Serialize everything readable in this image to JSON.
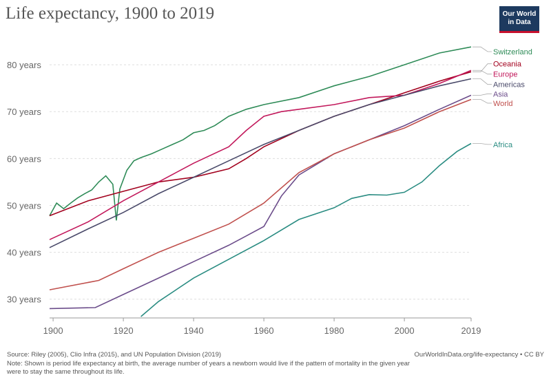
{
  "header": {
    "title": "Life expectancy, 1900 to 2019",
    "logo_line1": "Our World",
    "logo_line2": "in Data"
  },
  "footer": {
    "source": "Source: Riley (2005), Clio Infra (2015), and UN Population Division (2019)",
    "url": "OurWorldInData.org/life-expectancy • CC BY",
    "note_line1": "Note: Shown is period life expectancy at birth, the average number of years a newborn would live if the pattern of mortality in the given year",
    "note_line2": "were to stay the same throughout its life."
  },
  "chart_data": {
    "type": "line",
    "title": "Life expectancy, 1900 to 2019",
    "xlim": [
      1899,
      2019
    ],
    "ylim": [
      26,
      85
    ],
    "x_ticks": [
      {
        "value": 1900,
        "label": "1900"
      },
      {
        "value": 1920,
        "label": "1920"
      },
      {
        "value": 1940,
        "label": "1940"
      },
      {
        "value": 1960,
        "label": "1960"
      },
      {
        "value": 1980,
        "label": "1980"
      },
      {
        "value": 2000,
        "label": "2000"
      },
      {
        "value": 2019,
        "label": "2019"
      }
    ],
    "y_ticks": [
      {
        "value": 30,
        "label": "30 years"
      },
      {
        "value": 40,
        "label": "40 years"
      },
      {
        "value": 50,
        "label": "50 years"
      },
      {
        "value": 60,
        "label": "60 years"
      },
      {
        "value": 70,
        "label": "70 years"
      },
      {
        "value": 80,
        "label": "80 years"
      }
    ],
    "grid": "horizontal dashed",
    "legend": "right-side line labels",
    "series": [
      {
        "name": "Switzerland",
        "color": "#2e8b57",
        "label_y": 82.8,
        "points": [
          [
            1899,
            47.8
          ],
          [
            1901,
            50.5
          ],
          [
            1903,
            49.3
          ],
          [
            1905,
            50.5
          ],
          [
            1907,
            51.6
          ],
          [
            1909,
            52.5
          ],
          [
            1911,
            53.3
          ],
          [
            1913,
            55.0
          ],
          [
            1915,
            56.3
          ],
          [
            1917,
            54.5
          ],
          [
            1918,
            46.8
          ],
          [
            1919,
            53.5
          ],
          [
            1921,
            57.5
          ],
          [
            1923,
            59.5
          ],
          [
            1925,
            60.2
          ],
          [
            1928,
            61.0
          ],
          [
            1931,
            62.0
          ],
          [
            1934,
            63.0
          ],
          [
            1937,
            64.0
          ],
          [
            1940,
            65.5
          ],
          [
            1943,
            66.0
          ],
          [
            1946,
            67.0
          ],
          [
            1950,
            69.0
          ],
          [
            1955,
            70.5
          ],
          [
            1960,
            71.5
          ],
          [
            1970,
            73.0
          ],
          [
            1980,
            75.5
          ],
          [
            1990,
            77.5
          ],
          [
            2000,
            80.0
          ],
          [
            2010,
            82.5
          ],
          [
            2019,
            83.8
          ]
        ]
      },
      {
        "name": "Oceania",
        "color": "#a2001d",
        "label_y": 80.2,
        "points": [
          [
            1899,
            47.8
          ],
          [
            1910,
            51.0
          ],
          [
            1920,
            53.0
          ],
          [
            1930,
            55.0
          ],
          [
            1940,
            56.0
          ],
          [
            1950,
            57.8
          ],
          [
            1955,
            60.0
          ],
          [
            1960,
            62.5
          ],
          [
            1970,
            66.0
          ],
          [
            1980,
            69.0
          ],
          [
            1990,
            71.5
          ],
          [
            2000,
            74.0
          ],
          [
            2010,
            76.5
          ],
          [
            2019,
            78.5
          ]
        ]
      },
      {
        "name": "Europe",
        "color": "#c2185b",
        "label_y": 78.0,
        "points": [
          [
            1899,
            42.7
          ],
          [
            1910,
            46.5
          ],
          [
            1920,
            51.0
          ],
          [
            1930,
            55.0
          ],
          [
            1940,
            59.0
          ],
          [
            1950,
            62.5
          ],
          [
            1955,
            66.0
          ],
          [
            1960,
            69.0
          ],
          [
            1965,
            70.0
          ],
          [
            1970,
            70.5
          ],
          [
            1980,
            71.5
          ],
          [
            1990,
            73.0
          ],
          [
            2000,
            73.5
          ],
          [
            2010,
            76.0
          ],
          [
            2019,
            78.8
          ]
        ]
      },
      {
        "name": "Americas",
        "color": "#4a4a6a",
        "label_y": 75.8,
        "points": [
          [
            1899,
            41.0
          ],
          [
            1910,
            45.0
          ],
          [
            1920,
            48.5
          ],
          [
            1930,
            52.5
          ],
          [
            1940,
            56.0
          ],
          [
            1950,
            59.5
          ],
          [
            1960,
            63.0
          ],
          [
            1970,
            66.0
          ],
          [
            1980,
            69.0
          ],
          [
            1990,
            71.5
          ],
          [
            2000,
            73.5
          ],
          [
            2010,
            75.5
          ],
          [
            2019,
            77.0
          ]
        ]
      },
      {
        "name": "Asia",
        "color": "#6b4c8a",
        "label_y": 73.8,
        "points": [
          [
            1899,
            28.0
          ],
          [
            1912,
            28.2
          ],
          [
            1920,
            31.0
          ],
          [
            1930,
            34.5
          ],
          [
            1940,
            38.0
          ],
          [
            1950,
            41.5
          ],
          [
            1955,
            43.5
          ],
          [
            1960,
            45.5
          ],
          [
            1965,
            52.0
          ],
          [
            1970,
            56.5
          ],
          [
            1980,
            61.0
          ],
          [
            1990,
            64.0
          ],
          [
            2000,
            67.0
          ],
          [
            2010,
            70.5
          ],
          [
            2019,
            73.5
          ]
        ]
      },
      {
        "name": "World",
        "color": "#c0504d",
        "label_y": 71.8,
        "points": [
          [
            1899,
            32.0
          ],
          [
            1913,
            34.0
          ],
          [
            1920,
            36.5
          ],
          [
            1930,
            40.0
          ],
          [
            1940,
            43.0
          ],
          [
            1950,
            46.0
          ],
          [
            1960,
            50.5
          ],
          [
            1970,
            57.0
          ],
          [
            1980,
            61.0
          ],
          [
            1990,
            64.0
          ],
          [
            2000,
            66.5
          ],
          [
            2010,
            70.0
          ],
          [
            2019,
            72.6
          ]
        ]
      },
      {
        "name": "Africa",
        "color": "#2a8c82",
        "label_y": 63.0,
        "points": [
          [
            1925,
            26.3
          ],
          [
            1930,
            29.5
          ],
          [
            1940,
            34.5
          ],
          [
            1950,
            38.5
          ],
          [
            1960,
            42.5
          ],
          [
            1970,
            47.0
          ],
          [
            1980,
            49.5
          ],
          [
            1985,
            51.5
          ],
          [
            1990,
            52.3
          ],
          [
            1995,
            52.2
          ],
          [
            2000,
            52.8
          ],
          [
            2005,
            55.0
          ],
          [
            2010,
            58.5
          ],
          [
            2015,
            61.5
          ],
          [
            2019,
            63.2
          ]
        ]
      }
    ]
  }
}
